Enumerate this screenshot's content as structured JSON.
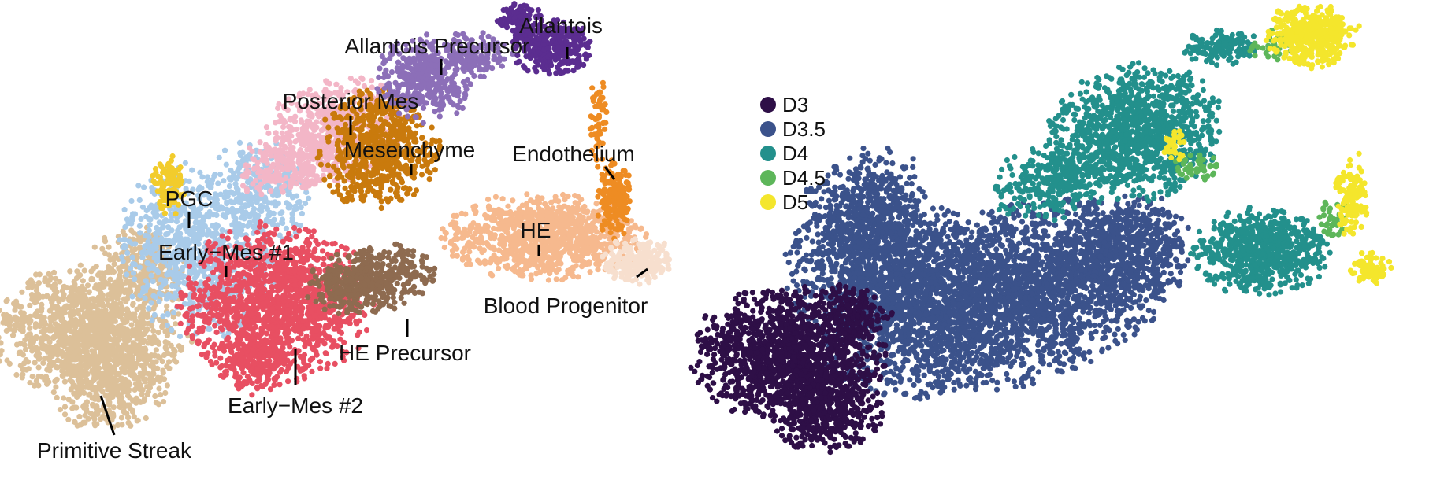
{
  "chart_data": [
    {
      "type": "scatter",
      "title": "",
      "xlabel": "",
      "ylabel": "",
      "grid": false,
      "colors": {
        "Allantois": "#5b2d90",
        "Allantois Precursor": "#8c6fb8",
        "Posterior Mes": "#f3b6c7",
        "Mesenchyme": "#c97a0d",
        "Endothelium": "#ee8c23",
        "PGC": "#f2cc2c",
        "Early-Mes #1": "#a9cbe9",
        "Early-Mes #2": "#e84f62",
        "HE": "#f6b98e",
        "HE Precursor": "#8e6b50",
        "Blood Progenitor": "#f7dfce",
        "Primitive Streak": "#dcc099"
      },
      "labels": [
        {
          "text": "Allantois"
        },
        {
          "text": "Allantois Precursor"
        },
        {
          "text": "Posterior Mes"
        },
        {
          "text": "Mesenchyme"
        },
        {
          "text": "Endothelium"
        },
        {
          "text": "PGC"
        },
        {
          "text": "HE"
        },
        {
          "text": "Early−Mes #1"
        },
        {
          "text": "Blood Progenitor"
        },
        {
          "text": "HE Precursor"
        },
        {
          "text": "Early−Mes #2"
        },
        {
          "text": "Primitive Streak"
        }
      ]
    },
    {
      "type": "scatter",
      "title": "",
      "xlabel": "",
      "ylabel": "",
      "grid": false,
      "legend_position": "top-left",
      "legend": [
        {
          "label": "D3",
          "color": "#2e0f47"
        },
        {
          "label": "D3.5",
          "color": "#3b528b"
        },
        {
          "label": "D4",
          "color": "#23908c"
        },
        {
          "label": "D4.5",
          "color": "#5db65a"
        },
        {
          "label": "D5",
          "color": "#f4e62c"
        }
      ]
    }
  ]
}
